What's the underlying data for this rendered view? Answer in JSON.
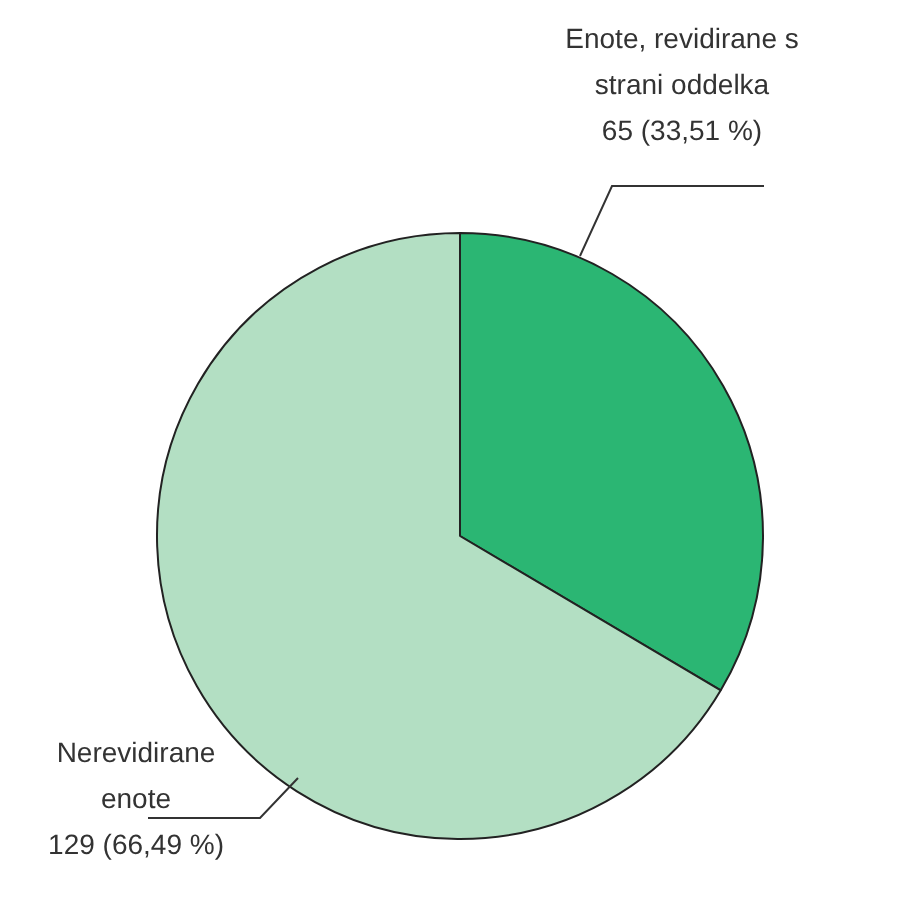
{
  "chart_data": {
    "type": "pie",
    "categories": [
      "Enote, revidirane s strani oddelka",
      "Nerevidirane enote"
    ],
    "values": [
      65,
      129
    ],
    "colors": [
      "#2bb673",
      "#b3dfc3"
    ],
    "value_labels": [
      "65 (33,51 %)",
      "129 (66,49 %)"
    ],
    "legend": false
  }
}
